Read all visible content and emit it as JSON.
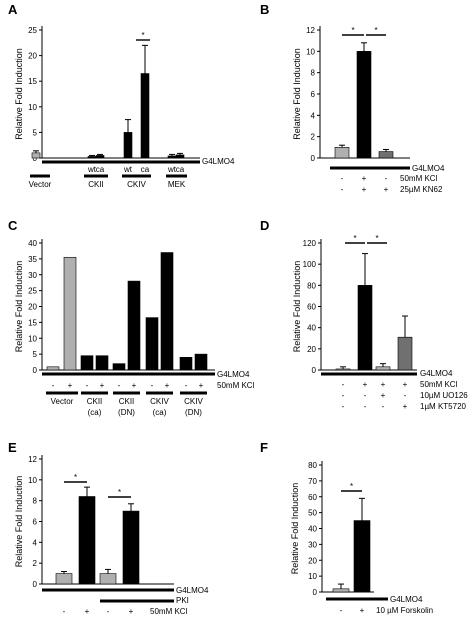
{
  "chart_data": [
    {
      "panel": "A",
      "type": "bar",
      "ylabel": "Relative Fold Induction",
      "ylim": [
        0,
        25
      ],
      "yticks": [
        0,
        5,
        10,
        15,
        20,
        25
      ],
      "categories": [
        "Vector",
        "CKII wt",
        "CKII ca",
        "CKIV wt",
        "CKIV ca",
        "MEK wt",
        "MEK ca"
      ],
      "values": [
        1.0,
        0.3,
        0.5,
        5.0,
        16.5,
        0.4,
        0.6
      ],
      "errors": [
        0.4,
        0.2,
        0.2,
        2.5,
        5.5,
        0.3,
        0.3
      ],
      "colors": [
        "#b0b0b0",
        "#000000",
        "#000000",
        "#000000",
        "#000000",
        "#000000",
        "#000000"
      ],
      "sub_labels": [
        "wt",
        "ca",
        "wt",
        "ca",
        "wt",
        "ca"
      ],
      "group_labels": [
        "Vector",
        "CKII",
        "CKIV",
        "MEK"
      ],
      "row_label": "G4LMO4",
      "significance": "*"
    },
    {
      "panel": "B",
      "type": "bar",
      "ylabel": "Relative Fold Induction",
      "ylim": [
        0,
        12
      ],
      "yticks": [
        0,
        2,
        4,
        6,
        8,
        10,
        12
      ],
      "values": [
        1.0,
        10.0,
        0.6
      ],
      "errors": [
        0.2,
        0.8,
        0.2
      ],
      "colors": [
        "#b0b0b0",
        "#000000",
        "#707070"
      ],
      "row_labels": [
        "G4LMO4",
        "50mM KCl",
        "25µM KN62"
      ],
      "signs": [
        [
          "-",
          "+",
          "-"
        ],
        [
          "-",
          "+",
          "+"
        ]
      ],
      "significance": "*"
    },
    {
      "panel": "C",
      "type": "bar",
      "ylabel": "Relative Fold Induction",
      "ylim": [
        0,
        40
      ],
      "yticks": [
        0,
        5,
        10,
        15,
        20,
        25,
        30,
        35,
        40
      ],
      "values": [
        1,
        35.5,
        4.5,
        4.5,
        2,
        28,
        16.5,
        37,
        4,
        5
      ],
      "colors": [
        "#b0b0b0",
        "#b0b0b0",
        "#000000",
        "#000000",
        "#000000",
        "#000000",
        "#000000",
        "#000000",
        "#000000",
        "#000000"
      ],
      "signs": [
        "-",
        "+",
        "-",
        "+",
        "-",
        "+",
        "-",
        "+",
        "-",
        "+"
      ],
      "group_labels": [
        [
          "Vector",
          ""
        ],
        [
          "CKII",
          "(ca)"
        ],
        [
          "CKII",
          "(DN)"
        ],
        [
          "CKIV",
          "(ca)"
        ],
        [
          "CKIV",
          "(DN)"
        ]
      ],
      "row_labels": [
        "G4LMO4",
        "50mM KCl"
      ]
    },
    {
      "panel": "D",
      "type": "bar",
      "ylabel": "Relative Fold Induction",
      "ylim": [
        0,
        120
      ],
      "yticks": [
        0,
        20,
        40,
        60,
        80,
        100,
        120
      ],
      "values": [
        1,
        80,
        3,
        31
      ],
      "errors": [
        2,
        30,
        3,
        20
      ],
      "colors": [
        "#b0b0b0",
        "#000000",
        "#b0b0b0",
        "#707070"
      ],
      "row_labels": [
        "G4LMO4",
        "50mM KCl",
        "10µM UO126",
        "1µM KT5720"
      ],
      "signs": [
        [
          "-",
          "+",
          "+",
          "+"
        ],
        [
          "-",
          "-",
          "+",
          "-"
        ],
        [
          "-",
          "-",
          "-",
          "+"
        ]
      ],
      "significance": "*"
    },
    {
      "panel": "E",
      "type": "bar",
      "ylabel": "Relative Fold Induction",
      "ylim": [
        0,
        12
      ],
      "yticks": [
        0,
        2,
        4,
        6,
        8,
        10,
        12
      ],
      "values": [
        1.0,
        8.4,
        1.0,
        7.0
      ],
      "errors": [
        0.2,
        0.9,
        0.4,
        0.7
      ],
      "colors": [
        "#b0b0b0",
        "#000000",
        "#b0b0b0",
        "#000000"
      ],
      "row_labels": [
        "G4LMO4",
        "PKI",
        "50mM KCl"
      ],
      "signs": [
        "-",
        "+",
        "-",
        "+"
      ],
      "significance": "*"
    },
    {
      "panel": "F",
      "type": "bar",
      "ylabel": "Relative Fold Induction",
      "ylim": [
        0,
        80
      ],
      "yticks": [
        0,
        10,
        20,
        30,
        40,
        50,
        60,
        70,
        80
      ],
      "values": [
        2,
        45
      ],
      "errors": [
        3,
        14
      ],
      "colors": [
        "#b0b0b0",
        "#000000"
      ],
      "row_labels": [
        "G4LMO4",
        "10 µM Forskolin"
      ],
      "signs": [
        "-",
        "+"
      ],
      "significance": "*"
    }
  ]
}
